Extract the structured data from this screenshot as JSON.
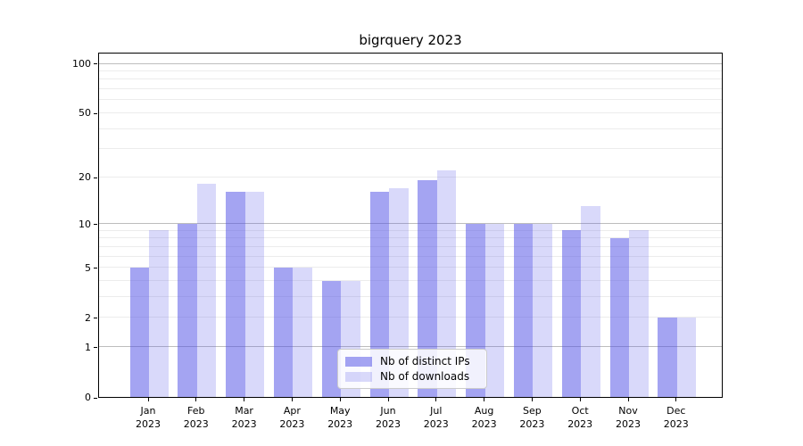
{
  "chart_data": {
    "type": "bar",
    "title": "bigrquery 2023",
    "months": [
      "Jan",
      "Feb",
      "Mar",
      "Apr",
      "May",
      "Jun",
      "Jul",
      "Aug",
      "Sep",
      "Oct",
      "Nov",
      "Dec"
    ],
    "year": "2023",
    "series": [
      {
        "name": "Nb of distinct IPs",
        "color": "rgba(80,80,230,0.52)",
        "values": [
          5,
          10,
          16,
          5,
          4,
          16,
          19,
          10,
          10,
          9,
          8,
          2
        ]
      },
      {
        "name": "Nb of downloads",
        "color": "rgba(80,80,230,0.22)",
        "values": [
          9,
          18,
          16,
          5,
          4,
          17,
          22,
          10,
          10,
          13,
          9,
          2
        ]
      }
    ],
    "y_scale": "log10(1+v)",
    "y_ticks": [
      100,
      50,
      20,
      10,
      5,
      2,
      1,
      0
    ],
    "y_major_gridlines": [
      1,
      10,
      100
    ],
    "y_minor_gridlines": [
      2,
      3,
      4,
      5,
      6,
      7,
      8,
      9,
      20,
      30,
      40,
      50,
      60,
      70,
      80,
      90
    ],
    "ylim": [
      0,
      118
    ],
    "grid": true,
    "legend_position": "bottom-center"
  },
  "colors": {
    "major_grid": "#bdbdbd",
    "minor_grid": "#ececec",
    "frame": "#000000",
    "text": "#000000",
    "legend_border": "#cccccc"
  }
}
